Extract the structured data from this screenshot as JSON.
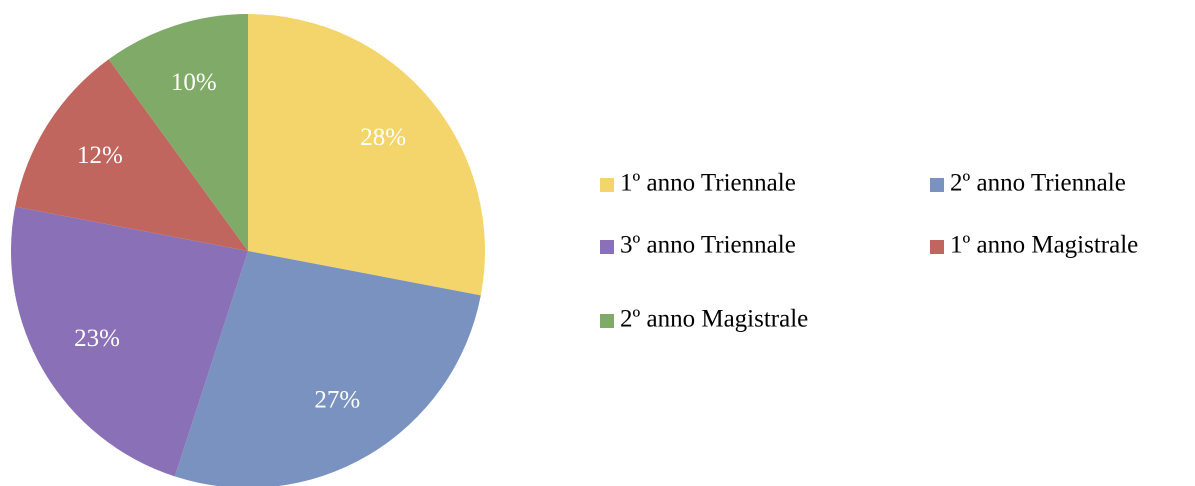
{
  "chart_data": {
    "type": "pie",
    "categories": [
      "1º anno Triennale",
      "2º anno Triennale",
      "3º anno Triennale",
      "1º anno Magistrale",
      "2º anno Magistrale"
    ],
    "values": [
      28,
      27,
      23,
      12,
      10
    ],
    "value_labels": [
      "28%",
      "27%",
      "23%",
      "12%",
      "10%"
    ],
    "colors": [
      "#f4d56c",
      "#7a92bf",
      "#8a70b6",
      "#c0665e",
      "#7faa68"
    ],
    "legend": "right"
  }
}
